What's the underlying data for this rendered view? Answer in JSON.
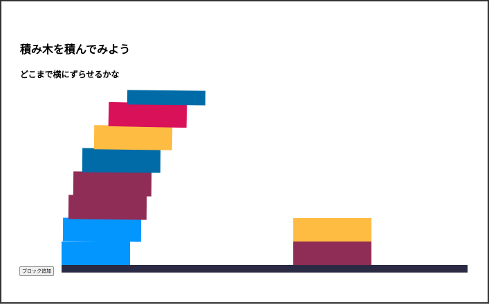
{
  "page": {
    "title": "積み木を積んでみよう",
    "subtitle": "どこまで横にずらせるかな"
  },
  "controls": {
    "add_block_label": "ブロック追加"
  },
  "colors": {
    "frame_border": "#333333",
    "ground": "#2b2a44",
    "block_blue_light": "#0496ff",
    "block_maroon": "#8f2d56",
    "block_blue_dark": "#006ba6",
    "block_yellow": "#ffbc42",
    "block_crimson": "#d81159"
  },
  "left_stack": {
    "blocks": [
      {
        "level": 1,
        "color": "#0496ff"
      },
      {
        "level": 2,
        "color": "#0496ff"
      },
      {
        "level": 3,
        "color": "#8f2d56"
      },
      {
        "level": 4,
        "color": "#8f2d56"
      },
      {
        "level": 5,
        "color": "#006ba6"
      },
      {
        "level": 6,
        "color": "#ffbc42"
      },
      {
        "level": 7,
        "color": "#d81159"
      },
      {
        "level": 8,
        "color": "#006ba6"
      }
    ]
  },
  "right_stack": {
    "blocks": [
      {
        "level": 1,
        "color": "#8f2d56"
      },
      {
        "level": 2,
        "color": "#ffbc42"
      }
    ]
  }
}
